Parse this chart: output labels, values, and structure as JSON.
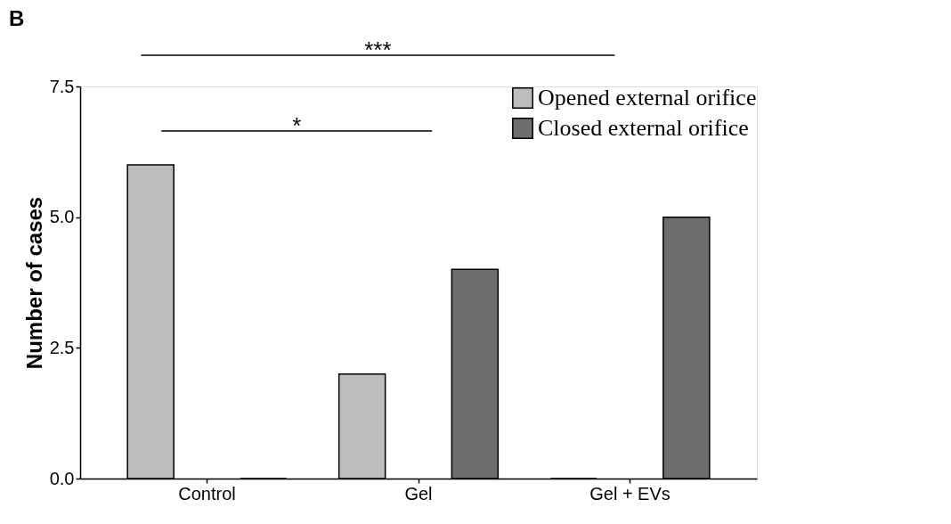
{
  "chart_data": {
    "type": "bar",
    "title": "B",
    "ylabel": "Number of cases",
    "categories": [
      "Control",
      "Gel",
      "Gel + EVs"
    ],
    "series": [
      {
        "name": "Opened external orifice",
        "color": "#bdbdbd",
        "values": [
          6,
          2,
          0
        ]
      },
      {
        "name": "Closed external orifice",
        "color": "#6e6e6e",
        "values": [
          0,
          4,
          5
        ]
      }
    ],
    "ylim": [
      0,
      7.5
    ],
    "yticks": [
      {
        "value": 0,
        "label": "0.0"
      },
      {
        "value": 2.5,
        "label": "2.5"
      },
      {
        "value": 5,
        "label": "5.0"
      },
      {
        "value": 7.5,
        "label": "7.5"
      }
    ],
    "grid": false,
    "legend": "top right",
    "annotations": [
      "***",
      "*"
    ]
  }
}
